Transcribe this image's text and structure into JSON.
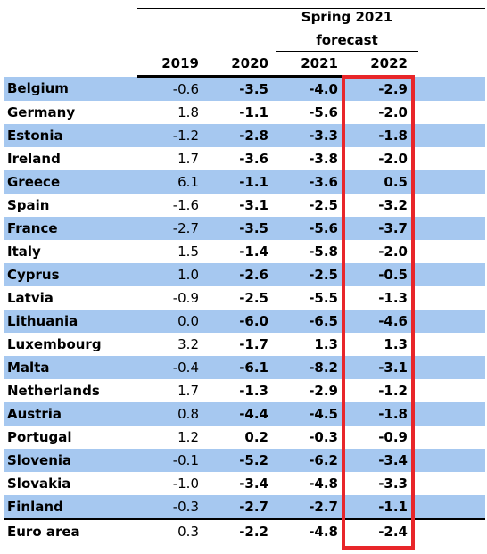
{
  "header": {
    "forecast_line1": "Spring 2021",
    "forecast_line2": "forecast",
    "years": [
      "2019",
      "2020",
      "2021",
      "2022"
    ]
  },
  "rows": [
    {
      "country": "Belgium",
      "values": [
        "-0.6",
        "-3.5",
        "-4.0",
        "-2.9"
      ]
    },
    {
      "country": "Germany",
      "values": [
        "1.8",
        "-1.1",
        "-5.6",
        "-2.0"
      ]
    },
    {
      "country": "Estonia",
      "values": [
        "-1.2",
        "-2.8",
        "-3.3",
        "-1.8"
      ]
    },
    {
      "country": "Ireland",
      "values": [
        "1.7",
        "-3.6",
        "-3.8",
        "-2.0"
      ]
    },
    {
      "country": "Greece",
      "values": [
        "6.1",
        "-1.1",
        "-3.6",
        "0.5"
      ]
    },
    {
      "country": "Spain",
      "values": [
        "-1.6",
        "-3.1",
        "-2.5",
        "-3.2"
      ]
    },
    {
      "country": "France",
      "values": [
        "-2.7",
        "-3.5",
        "-5.6",
        "-3.7"
      ]
    },
    {
      "country": "Italy",
      "values": [
        "1.5",
        "-1.4",
        "-5.8",
        "-2.0"
      ]
    },
    {
      "country": "Cyprus",
      "values": [
        "1.0",
        "-2.6",
        "-2.5",
        "-0.5"
      ]
    },
    {
      "country": "Latvia",
      "values": [
        "-0.9",
        "-2.5",
        "-5.5",
        "-1.3"
      ]
    },
    {
      "country": "Lithuania",
      "values": [
        "0.0",
        "-6.0",
        "-6.5",
        "-4.6"
      ]
    },
    {
      "country": "Luxembourg",
      "values": [
        "3.2",
        "-1.7",
        "1.3",
        "1.3"
      ]
    },
    {
      "country": "Malta",
      "values": [
        "-0.4",
        "-6.1",
        "-8.2",
        "-3.1"
      ]
    },
    {
      "country": "Netherlands",
      "values": [
        "1.7",
        "-1.3",
        "-2.9",
        "-1.2"
      ]
    },
    {
      "country": "Austria",
      "values": [
        "0.8",
        "-4.4",
        "-4.5",
        "-1.8"
      ]
    },
    {
      "country": "Portugal",
      "values": [
        "1.2",
        "0.2",
        "-0.3",
        "-0.9"
      ]
    },
    {
      "country": "Slovenia",
      "values": [
        "-0.1",
        "-5.2",
        "-6.2",
        "-3.4"
      ]
    },
    {
      "country": "Slovakia",
      "values": [
        "-1.0",
        "-3.4",
        "-4.8",
        "-3.3"
      ]
    },
    {
      "country": "Finland",
      "values": [
        "-0.3",
        "-2.7",
        "-2.7",
        "-1.1"
      ]
    },
    {
      "country": "Euro area",
      "values": [
        "0.3",
        "-2.2",
        "-4.8",
        "-2.4"
      ]
    }
  ],
  "colors": {
    "row_shade": "#a6c8f0",
    "highlight_border": "#e8262a"
  }
}
